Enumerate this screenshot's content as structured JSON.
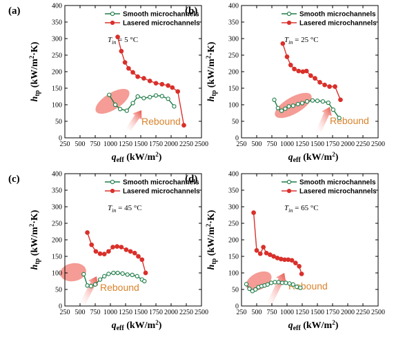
{
  "chart_data": [
    {
      "type": "line",
      "panel_label": "(a)",
      "condition": "5 °C",
      "rebound_label": "Rebound",
      "xlabel": "q_eff (kW/m²)",
      "ylabel": "h_tp (kW/m²·K)",
      "xlim": [
        250,
        2500
      ],
      "ylim": [
        0,
        400
      ],
      "xticks": [
        "250",
        "500",
        "750",
        "1000",
        "1250",
        "1500",
        "1750",
        "2000",
        "2250",
        "2500"
      ],
      "yticks": [
        "0",
        "50",
        "100",
        "150",
        "200",
        "250",
        "300",
        "350",
        "400"
      ],
      "legend": [
        "Smooth microchannels",
        "Lasered microchannels"
      ],
      "series": [
        {
          "name": "Smooth microchannels",
          "color": "#1b7a45",
          "marker": "open-circle",
          "x": [
            980,
            1080,
            1160,
            1270,
            1370,
            1450,
            1550,
            1650,
            1750,
            1850,
            1950,
            2050
          ],
          "y": [
            130,
            100,
            87,
            82,
            105,
            125,
            120,
            123,
            128,
            126,
            118,
            95
          ]
        },
        {
          "name": "Lasered microchannels",
          "color": "#d9302b",
          "marker": "filled-circle",
          "x": [
            1120,
            1180,
            1240,
            1300,
            1370,
            1450,
            1550,
            1650,
            1750,
            1850,
            1950,
            2020,
            2110,
            2210
          ],
          "y": [
            305,
            262,
            228,
            210,
            198,
            185,
            180,
            172,
            165,
            162,
            158,
            152,
            140,
            38
          ]
        }
      ]
    },
    {
      "type": "line",
      "panel_label": "(b)",
      "condition": "25 °C",
      "rebound_label": "Rebound",
      "xlabel": "q_eff (kW/m²)",
      "ylabel": "h_tp (kW/m²·K)",
      "xlim": [
        250,
        2500
      ],
      "ylim": [
        0,
        400
      ],
      "xticks": [
        "250",
        "500",
        "750",
        "1000",
        "1250",
        "1500",
        "1750",
        "2000",
        "2250",
        "2500"
      ],
      "yticks": [
        "0",
        "50",
        "100",
        "150",
        "200",
        "250",
        "300",
        "350",
        "400"
      ],
      "legend": [
        "Smooth microchannels",
        "Lasered microchannels"
      ],
      "series": [
        {
          "name": "Smooth microchannels",
          "color": "#1b7a45",
          "marker": "open-circle",
          "x": [
            790,
            850,
            910,
            970,
            1030,
            1100,
            1180,
            1250,
            1330,
            1420,
            1500,
            1590,
            1680,
            1760,
            1860
          ],
          "y": [
            115,
            90,
            82,
            88,
            95,
            97,
            102,
            105,
            110,
            113,
            112,
            110,
            106,
            85,
            60
          ]
        },
        {
          "name": "Lasered microchannels",
          "color": "#d9302b",
          "marker": "filled-circle",
          "x": [
            930,
            1000,
            1060,
            1120,
            1190,
            1260,
            1320,
            1390,
            1460,
            1540,
            1620,
            1700,
            1790,
            1880
          ],
          "y": [
            285,
            245,
            220,
            208,
            202,
            200,
            202,
            188,
            180,
            168,
            160,
            155,
            155,
            115
          ]
        }
      ]
    },
    {
      "type": "line",
      "panel_label": "(c)",
      "condition": "45 °C",
      "rebound_label": "Rebound",
      "xlabel": "q_eff (kW/m²)",
      "ylabel": "h_tp (kW/m²·K)",
      "xlim": [
        250,
        2500
      ],
      "ylim": [
        0,
        400
      ],
      "xticks": [
        "250",
        "500",
        "750",
        "1000",
        "1250",
        "1500",
        "1750",
        "2000",
        "2250",
        "2500"
      ],
      "yticks": [
        "0",
        "50",
        "100",
        "150",
        "200",
        "250",
        "300",
        "350",
        "400"
      ],
      "legend": [
        "Smooth microchannels",
        "Lasered microchannels"
      ],
      "series": [
        {
          "name": "Smooth microchannels",
          "color": "#1b7a45",
          "marker": "open-circle",
          "x": [
            560,
            620,
            680,
            750,
            830,
            900,
            970,
            1050,
            1120,
            1200,
            1280,
            1360,
            1440,
            1520,
            1560
          ],
          "y": [
            96,
            62,
            60,
            65,
            80,
            90,
            97,
            100,
            100,
            98,
            95,
            94,
            90,
            80,
            75
          ]
        },
        {
          "name": "Lasered microchannels",
          "color": "#d9302b",
          "marker": "filled-circle",
          "x": [
            620,
            690,
            760,
            830,
            900,
            970,
            1040,
            1110,
            1180,
            1260,
            1330,
            1400,
            1460,
            1520,
            1580
          ],
          "y": [
            222,
            185,
            165,
            158,
            157,
            165,
            178,
            180,
            178,
            170,
            165,
            160,
            150,
            140,
            100
          ]
        }
      ]
    },
    {
      "type": "line",
      "panel_label": "(d)",
      "condition": "65 °C",
      "rebound_label": "Rebound",
      "xlabel": "q_eff (kW/m²)",
      "ylabel": "h_tp (kW/m²·K)",
      "xlim": [
        250,
        2500
      ],
      "ylim": [
        0,
        400
      ],
      "xticks": [
        "250",
        "500",
        "750",
        "1000",
        "1250",
        "1500",
        "1750",
        "2000",
        "2250",
        "2500"
      ],
      "yticks": [
        "0",
        "50",
        "100",
        "150",
        "200",
        "250",
        "300",
        "350",
        "400"
      ],
      "legend": [
        "Smooth microchannels",
        "Lasered microchannels"
      ],
      "series": [
        {
          "name": "Smooth microchannels",
          "color": "#1b7a45",
          "marker": "open-circle",
          "x": [
            330,
            380,
            430,
            480,
            530,
            580,
            630,
            680,
            740,
            800,
            860,
            920,
            980,
            1040,
            1100,
            1160,
            1220
          ],
          "y": [
            66,
            52,
            45,
            50,
            57,
            60,
            62,
            65,
            70,
            72,
            72,
            70,
            70,
            68,
            65,
            58,
            55
          ]
        },
        {
          "name": "Lasered microchannels",
          "color": "#d9302b",
          "marker": "filled-circle",
          "x": [
            450,
            500,
            560,
            610,
            660,
            720,
            780,
            840,
            900,
            960,
            1020,
            1080,
            1140,
            1200,
            1240
          ],
          "y": [
            282,
            168,
            158,
            178,
            160,
            155,
            150,
            145,
            142,
            140,
            140,
            138,
            130,
            120,
            97
          ]
        }
      ]
    }
  ]
}
